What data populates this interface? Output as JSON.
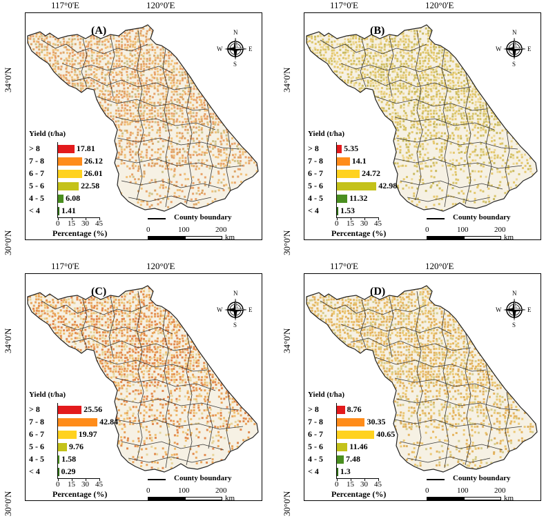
{
  "axes": {
    "lon_labels": [
      "117°0'E",
      "120°0'E"
    ],
    "lat_labels": [
      "34°0'N",
      "30°0'N"
    ]
  },
  "compass": {
    "n": "N",
    "s": "S",
    "e": "E",
    "w": "W"
  },
  "legend": {
    "title": "Yield (t/ha)",
    "classes": [
      "> 8",
      "7 - 8",
      "6 - 7",
      "5 - 6",
      "4 - 5",
      "< 4"
    ],
    "class_colors": [
      "#e31a1c",
      "#ff8c1a",
      "#ffd21f",
      "#c4c21a",
      "#4a8f1f",
      "#2d6b12"
    ],
    "x_ticks": [
      "0",
      "15",
      "30",
      "45"
    ],
    "x_title": "Percentage (%)",
    "x_max": 45
  },
  "boundary_label": "County boundary",
  "scale": {
    "ticks": [
      "0",
      "100",
      "200"
    ],
    "unit": "km"
  },
  "panels": [
    {
      "label": "(A)",
      "values": [
        17.81,
        26.12,
        26.01,
        22.58,
        6.08,
        1.41
      ],
      "value_labels": [
        "17.81",
        "26.12",
        "26.01",
        "22.58",
        "6.08",
        "1.41"
      ]
    },
    {
      "label": "(B)",
      "values": [
        5.35,
        14.1,
        24.72,
        42.98,
        11.32,
        1.53
      ],
      "value_labels": [
        "5.35",
        "14.1",
        "24.72",
        "42.98",
        "11.32",
        "1.53"
      ]
    },
    {
      "label": "(C)",
      "values": [
        25.56,
        42.84,
        19.97,
        9.76,
        1.58,
        0.29
      ],
      "value_labels": [
        "25.56",
        "42.84",
        "19.97",
        "9.76",
        "1.58",
        "0.29"
      ]
    },
    {
      "label": "(D)",
      "values": [
        8.76,
        30.35,
        40.65,
        11.46,
        7.48,
        1.3
      ],
      "value_labels": [
        "8.76",
        "30.35",
        "40.65",
        "11.46",
        "7.48",
        "1.3"
      ]
    }
  ]
}
